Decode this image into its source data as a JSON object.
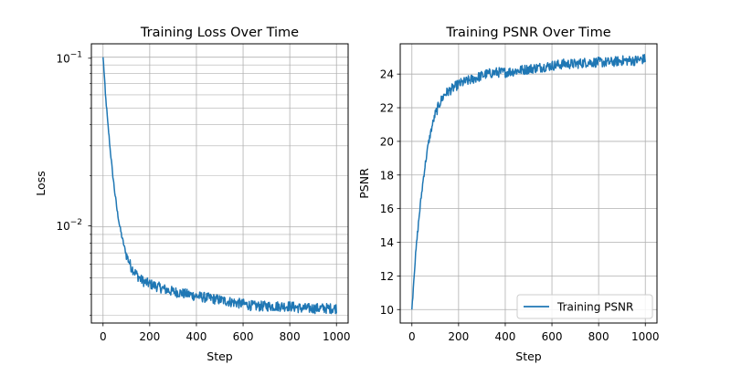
{
  "chart_data": [
    {
      "type": "line",
      "title": "Training Loss Over Time",
      "xlabel": "Step",
      "ylabel": "Loss",
      "xlim": [
        -50,
        1050
      ],
      "ylim": [
        0.0027,
        0.12
      ],
      "yscale": "log",
      "grid": true,
      "grid_minor_y": true,
      "xticks": [
        0,
        200,
        400,
        600,
        800,
        1000
      ],
      "xtick_labels": [
        "0",
        "200",
        "400",
        "600",
        "800",
        "1000"
      ],
      "ytick_labels": [
        {
          "base": "10",
          "exp": "−1",
          "value": 0.1
        },
        {
          "base": "10",
          "exp": "−2",
          "value": 0.01
        }
      ],
      "series": [
        {
          "color": "#1f77b4",
          "x": [
            0,
            10,
            20,
            30,
            40,
            50,
            60,
            70,
            80,
            90,
            100,
            120,
            140,
            160,
            180,
            200,
            240,
            280,
            320,
            360,
            400,
            450,
            500,
            550,
            600,
            650,
            700,
            750,
            800,
            850,
            900,
            950,
            1000
          ],
          "y": [
            0.1,
            0.06,
            0.041,
            0.029,
            0.021,
            0.016,
            0.0125,
            0.0103,
            0.0088,
            0.0077,
            0.0068,
            0.0058,
            0.0053,
            0.0049,
            0.0047,
            0.0046,
            0.0044,
            0.0042,
            0.0041,
            0.004,
            0.0039,
            0.0038,
            0.0037,
            0.0036,
            0.0035,
            0.0034,
            0.0034,
            0.0034,
            0.0034,
            0.0033,
            0.0033,
            0.0033,
            0.0033
          ]
        }
      ]
    },
    {
      "type": "line",
      "title": "Training PSNR Over Time",
      "xlabel": "Step",
      "ylabel": "PSNR",
      "xlim": [
        -50,
        1050
      ],
      "ylim": [
        9.2,
        25.8
      ],
      "grid": true,
      "legend": "lower-right",
      "xticks": [
        0,
        200,
        400,
        600,
        800,
        1000
      ],
      "xtick_labels": [
        "0",
        "200",
        "400",
        "600",
        "800",
        "1000"
      ],
      "yticks": [
        10,
        12,
        14,
        16,
        18,
        20,
        22,
        24
      ],
      "ytick_labels": [
        "10",
        "12",
        "14",
        "16",
        "18",
        "20",
        "22",
        "24"
      ],
      "series": [
        {
          "name": "Training PSNR",
          "color": "#1f77b4",
          "x": [
            0,
            10,
            20,
            30,
            40,
            50,
            60,
            70,
            80,
            90,
            100,
            120,
            140,
            160,
            180,
            200,
            240,
            280,
            320,
            360,
            400,
            450,
            500,
            550,
            600,
            650,
            700,
            750,
            800,
            850,
            900,
            950,
            1000
          ],
          "y": [
            10.0,
            12.2,
            13.9,
            15.4,
            16.7,
            17.9,
            18.9,
            19.8,
            20.5,
            21.1,
            21.6,
            22.3,
            22.8,
            23.0,
            23.2,
            23.4,
            23.6,
            23.8,
            24.0,
            24.1,
            24.1,
            24.2,
            24.3,
            24.4,
            24.5,
            24.6,
            24.6,
            24.7,
            24.7,
            24.7,
            24.8,
            24.8,
            24.9
          ]
        }
      ]
    }
  ]
}
